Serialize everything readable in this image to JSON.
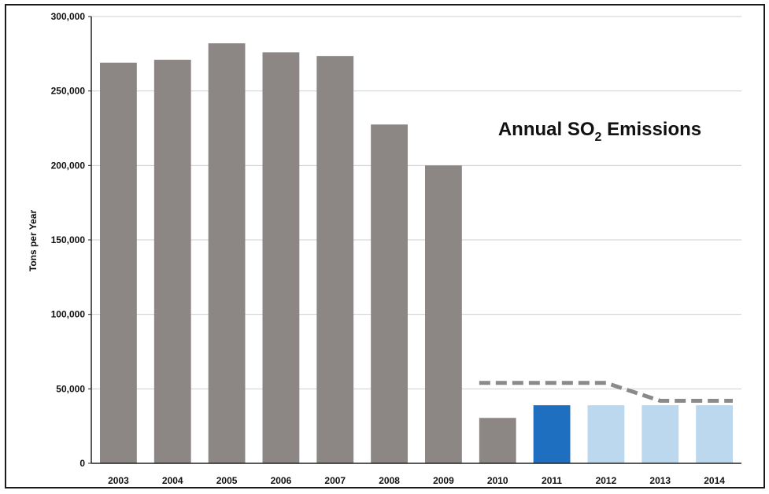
{
  "chart_data": {
    "type": "bar",
    "title": {
      "prefix": "Annual SO",
      "subscript": "2",
      "suffix": " Emissions"
    },
    "xlabel": "",
    "ylabel": "Tons per Year",
    "ylim": [
      0,
      300000
    ],
    "yticks": [
      0,
      50000,
      100000,
      150000,
      200000,
      250000,
      300000
    ],
    "ytick_labels": [
      "0",
      "50,000",
      "100,000",
      "150,000",
      "200,000",
      "250,000",
      "300,000"
    ],
    "grid": true,
    "categories": [
      "2003",
      "2004",
      "2005",
      "2006",
      "2007",
      "2008",
      "2009",
      "2010",
      "2011",
      "2012",
      "2013",
      "2014"
    ],
    "values": [
      269000,
      271000,
      282000,
      276000,
      273500,
      227500,
      200000,
      30500,
      39000,
      39000,
      39000,
      39000
    ],
    "bar_colors": [
      "#8c8785",
      "#8c8785",
      "#8c8785",
      "#8c8785",
      "#8c8785",
      "#8c8785",
      "#8c8785",
      "#8c8785",
      "#1f6fc1",
      "#bcd8ee",
      "#bcd8ee",
      "#bcd8ee"
    ],
    "reference_line": {
      "style": "dashed",
      "color": "#8a8a8a",
      "points": [
        {
          "x": "2010",
          "y": 54000
        },
        {
          "x": "2012",
          "y": 54000
        },
        {
          "x": "2013",
          "y": 42000
        },
        {
          "x": "2014",
          "y": 42000
        }
      ]
    }
  }
}
